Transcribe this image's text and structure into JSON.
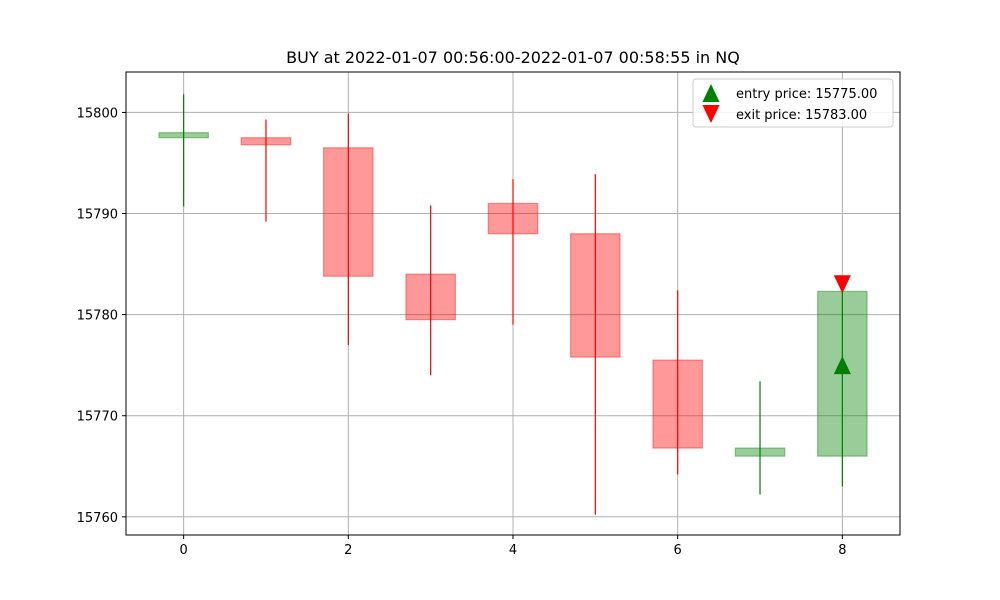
{
  "chart_data": {
    "type": "candlestick",
    "title": "BUY at 2022-01-07 00:56:00-2022-01-07 00:58:55 in NQ",
    "xlabel": "",
    "ylabel": "",
    "xlim": [
      -0.7,
      8.7
    ],
    "ylim": [
      15758.2,
      15804
    ],
    "x_ticks": [
      0,
      2,
      4,
      6,
      8
    ],
    "y_ticks": [
      15760,
      15770,
      15780,
      15790,
      15800
    ],
    "grid": true,
    "legend_position": "top-right",
    "up_color": "#008000",
    "down_color": "#ff0000",
    "candles": [
      {
        "x": 0,
        "open": 15797.5,
        "close": 15798.0,
        "high": 15801.8,
        "low": 15790.7
      },
      {
        "x": 1,
        "open": 15797.5,
        "close": 15796.8,
        "high": 15799.3,
        "low": 15789.2
      },
      {
        "x": 2,
        "open": 15796.5,
        "close": 15783.8,
        "high": 15799.9,
        "low": 15777.0
      },
      {
        "x": 3,
        "open": 15784.0,
        "close": 15779.5,
        "high": 15790.8,
        "low": 15774.0
      },
      {
        "x": 4,
        "open": 15791.0,
        "close": 15788.0,
        "high": 15793.4,
        "low": 15779.0
      },
      {
        "x": 5,
        "open": 15788.0,
        "close": 15775.8,
        "high": 15793.9,
        "low": 15760.2
      },
      {
        "x": 6,
        "open": 15775.5,
        "close": 15766.8,
        "high": 15782.4,
        "low": 15764.2
      },
      {
        "x": 7,
        "open": 15766.0,
        "close": 15766.8,
        "high": 15773.4,
        "low": 15762.2
      },
      {
        "x": 8,
        "open": 15766.0,
        "close": 15782.3,
        "high": 15782.3,
        "low": 15763.0
      }
    ],
    "markers": [
      {
        "name": "entry price: 15775.00",
        "x": 8,
        "y": 15775.0,
        "shape": "triangle-up",
        "color": "#008000"
      },
      {
        "name": "exit price: 15783.00",
        "x": 8,
        "y": 15783.0,
        "shape": "triangle-down",
        "color": "#ff0000"
      }
    ]
  }
}
